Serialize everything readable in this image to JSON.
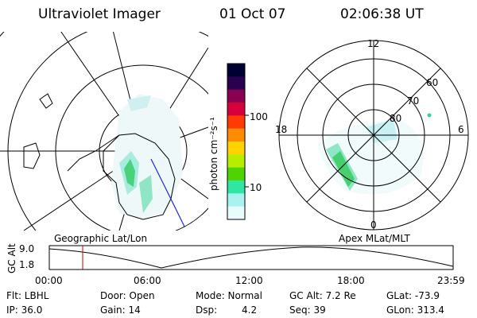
{
  "header": {
    "title": "Ultraviolet Imager",
    "date": "01 Oct 07",
    "time": "02:06:38 UT"
  },
  "colorbar": {
    "label": "photon cm⁻²s⁻¹",
    "ticks": [
      "100",
      "10"
    ],
    "colors": [
      "#000033",
      "#2a0050",
      "#8a0050",
      "#d6003a",
      "#ff3a00",
      "#ff8c00",
      "#ffd200",
      "#b7ee00",
      "#4ed400",
      "#2fe7a3",
      "#a8f3ef",
      "#e9fbfb"
    ]
  },
  "left_map": {
    "caption": "Geographic Lat/Lon"
  },
  "right_map": {
    "caption": "Apex MLat/MLT",
    "lat_labels": [
      "60",
      "70",
      "80"
    ],
    "mlt_labels": {
      "top": "12",
      "left": "18",
      "right": "6",
      "bottom": "0"
    }
  },
  "timeline": {
    "ylabel": "GC Alt",
    "y_ticks": [
      "9.0",
      "1.8"
    ],
    "x_ticks": [
      "00:00",
      "06:00",
      "12:00",
      "18:00",
      "23:59"
    ],
    "marker_color": "#cc0000"
  },
  "info": {
    "row1": [
      "Flt: LBHL",
      "Door: Open",
      "Mode: Normal",
      "GC Alt: 7.2 Re",
      "GLat: -73.9"
    ],
    "row2": [
      "IP: 36.0",
      "Gain: 14",
      "Dsp:",
      "4.2",
      "Seq: 39",
      "GLon: 313.4"
    ]
  }
}
